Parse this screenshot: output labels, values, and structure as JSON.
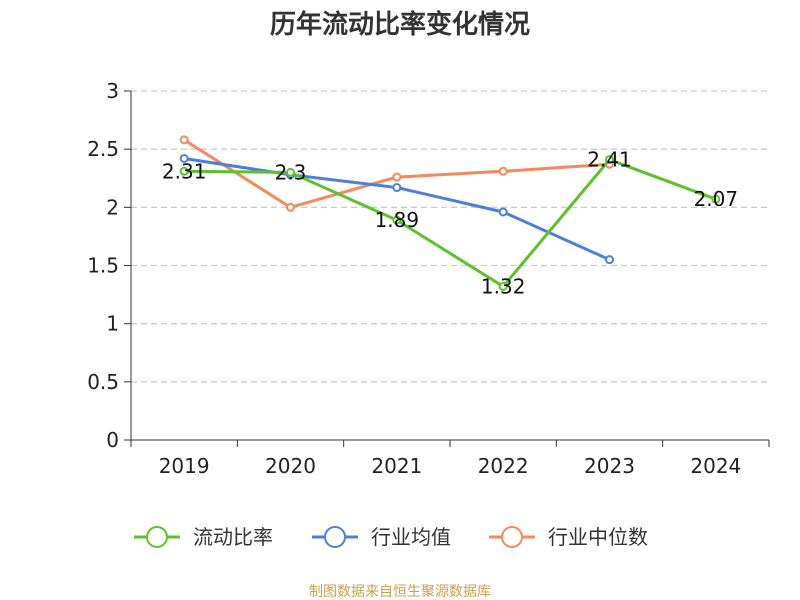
{
  "chart_data": {
    "type": "line",
    "title": "历年流动比率变化情况",
    "categories": [
      "2019",
      "2020",
      "2021",
      "2022",
      "2023",
      "2024"
    ],
    "ylim": [
      0,
      3
    ],
    "y_ticks": [
      "0",
      "0.5",
      "1",
      "1.5",
      "2",
      "2.5",
      "3"
    ],
    "grid": "horizontal dashed",
    "legend_position": "bottom",
    "series": [
      {
        "name": "流动比率",
        "color": "#5cc12a",
        "values": [
          2.31,
          2.3,
          1.89,
          1.32,
          2.41,
          2.07
        ],
        "labels": [
          "2.31",
          "2.3",
          "1.89",
          "1.32",
          "2.41",
          "2.07"
        ]
      },
      {
        "name": "行业均值",
        "color": "#4c7fdc",
        "values": [
          2.42,
          2.28,
          2.17,
          1.96,
          1.55,
          null
        ]
      },
      {
        "name": "行业中位数",
        "color": "#f5895a",
        "values": [
          2.58,
          2.0,
          2.26,
          2.31,
          2.37,
          null
        ]
      }
    ]
  },
  "footer": {
    "source": "制图数据来自恒生聚源数据库",
    "source_color": "#c8a04a"
  }
}
